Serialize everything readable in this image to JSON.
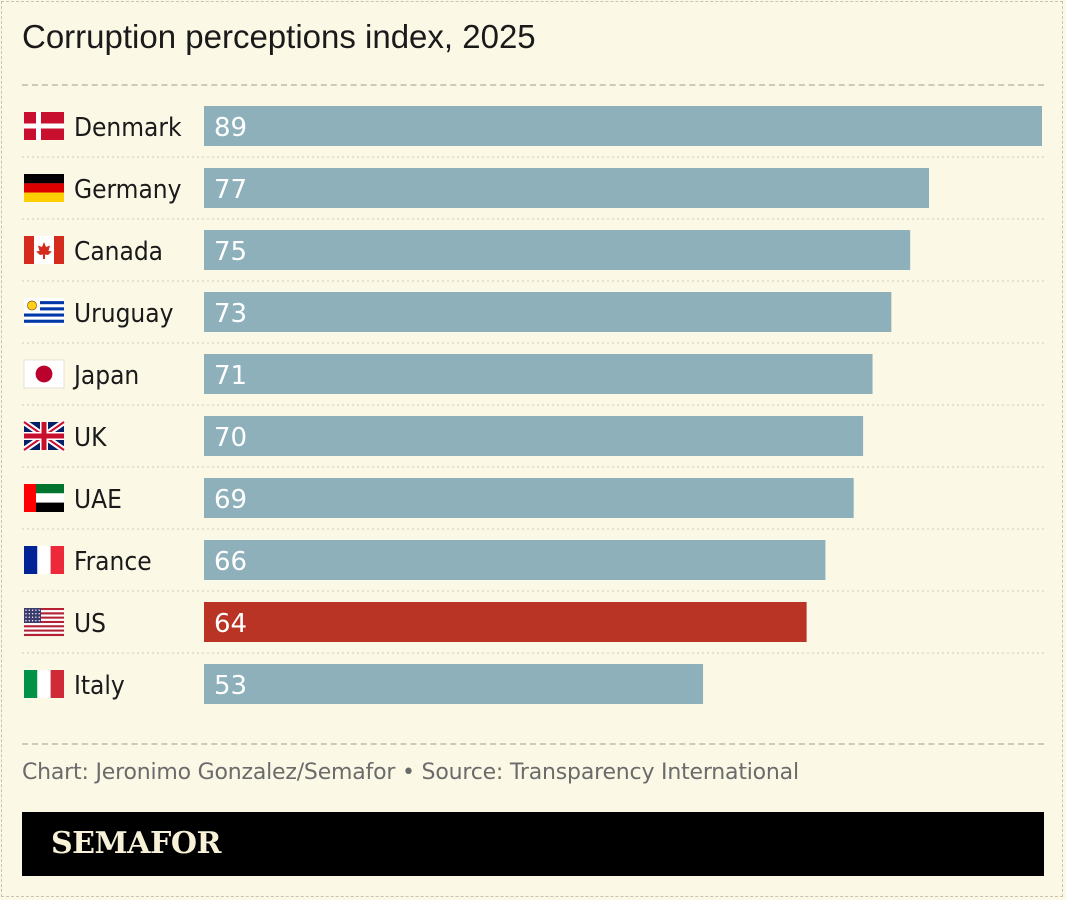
{
  "chart_data": {
    "type": "bar",
    "orientation": "horizontal",
    "title": "Corruption perceptions index, 2025",
    "categories": [
      "Denmark",
      "Germany",
      "Canada",
      "Uruguay",
      "Japan",
      "UK",
      "UAE",
      "France",
      "US",
      "Italy"
    ],
    "values": [
      89,
      77,
      75,
      73,
      71,
      70,
      69,
      66,
      64,
      53
    ],
    "flags": [
      "denmark-flag-icon",
      "germany-flag-icon",
      "canada-flag-icon",
      "uruguay-flag-icon",
      "japan-flag-icon",
      "uk-flag-icon",
      "uae-flag-icon",
      "france-flag-icon",
      "us-flag-icon",
      "italy-flag-icon"
    ],
    "xlim": [
      0,
      89
    ],
    "grid": false,
    "legend": "none",
    "bar_color": "#8eb0bb",
    "highlight_category": "US",
    "highlight_color": "#b93424"
  },
  "footer": {
    "source": "Chart: Jeronimo Gonzalez/Semafor • Source: Transparency International",
    "brand": "SEMAFOR"
  }
}
